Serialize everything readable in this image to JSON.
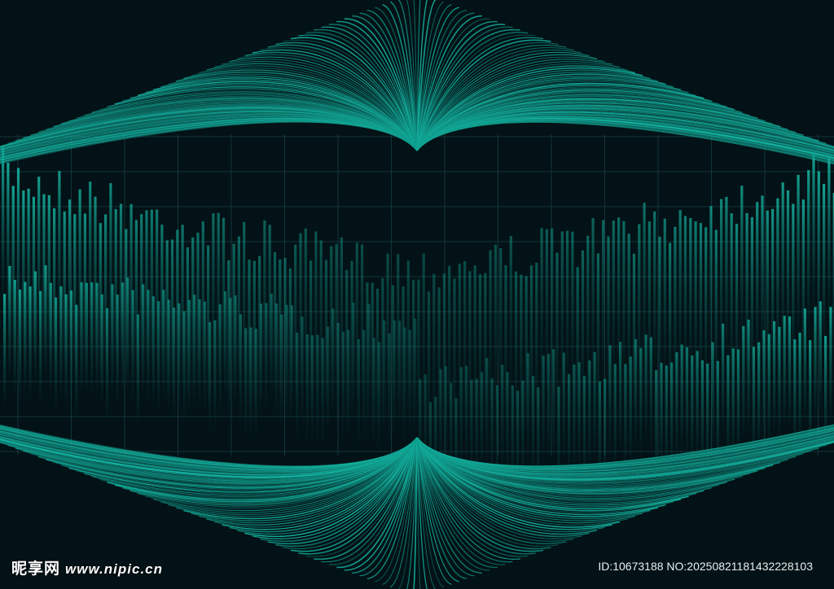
{
  "colors": {
    "background": "#031216",
    "accent": "#14b3a0",
    "accent_dark": "#0a5e58",
    "grid": "#12343a"
  },
  "watermark": {
    "site_name": "昵享网",
    "url": "www.nipic.cn",
    "id_text": "ID:10673188 NO:20250821181432228103"
  }
}
